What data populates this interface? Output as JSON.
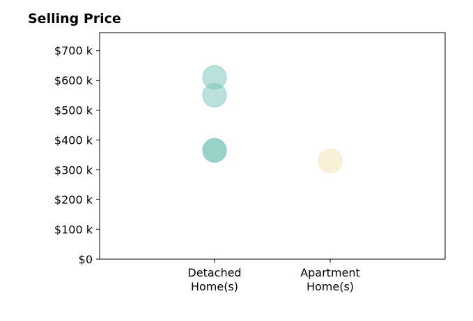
{
  "chart_data": {
    "type": "scatter",
    "title": "Selling Price",
    "xlabel": "",
    "ylabel": "",
    "categories": [
      "Detached\nHome(s)",
      "Apartment\nHome(s)"
    ],
    "ylim": [
      0,
      760000
    ],
    "y_ticks": [
      {
        "value": 0,
        "label": "$0"
      },
      {
        "value": 100000,
        "label": "$100 k"
      },
      {
        "value": 200000,
        "label": "$200 k"
      },
      {
        "value": 300000,
        "label": "$300 k"
      },
      {
        "value": 400000,
        "label": "$400 k"
      },
      {
        "value": 500000,
        "label": "$500 k"
      },
      {
        "value": 600000,
        "label": "$600 k"
      },
      {
        "value": 700000,
        "label": "$700 k"
      }
    ],
    "points": [
      {
        "category": "Detached\nHome(s)",
        "value": 610000,
        "color": "#76c4b8"
      },
      {
        "category": "Detached\nHome(s)",
        "value": 550000,
        "color": "#76c4b8"
      },
      {
        "category": "Detached\nHome(s)",
        "value": 365000,
        "color": "#76c4b8"
      },
      {
        "category": "Detached\nHome(s)",
        "value": 365000,
        "color": "#76c4b8"
      },
      {
        "category": "Apartment\nHome(s)",
        "value": 330000,
        "color": "#f5dfb0"
      }
    ],
    "grid": false,
    "legend": "none"
  }
}
